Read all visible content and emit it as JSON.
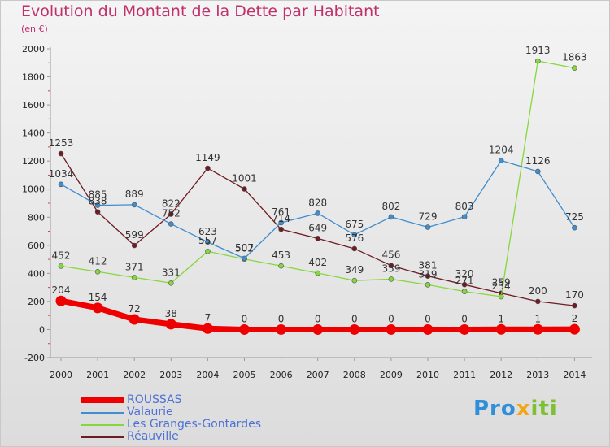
{
  "title": "Evolution du Montant de la Dette par Habitant",
  "subtitle": "(en €)",
  "logo": {
    "part1": "Pro",
    "part2": "x",
    "part3": "iti"
  },
  "chart_data": {
    "type": "line",
    "x": [
      "2000",
      "2001",
      "2002",
      "2003",
      "2004",
      "2005",
      "2006",
      "2007",
      "2008",
      "2009",
      "2010",
      "2011",
      "2012",
      "2013",
      "2014"
    ],
    "ylim": [
      -200,
      2000
    ],
    "yticks": [
      -200,
      0,
      200,
      400,
      600,
      800,
      1000,
      1200,
      1400,
      1600,
      1800,
      2000
    ],
    "grid": false,
    "legend_position": "bottom-left",
    "series": [
      {
        "name": "ROUSSAS",
        "color": "#ee0000",
        "values": [
          204,
          154,
          72,
          38,
          7,
          0,
          0,
          0,
          0,
          0,
          0,
          0,
          1,
          1,
          2
        ]
      },
      {
        "name": "Valaurie",
        "color": "#3f8ecf",
        "values": [
          1034,
          885,
          889,
          752,
          623,
          507,
          761,
          828,
          675,
          802,
          729,
          803,
          1204,
          1126,
          725
        ]
      },
      {
        "name": "Les Granges-Gontardes",
        "color": "#84d83c",
        "values": [
          452,
          412,
          371,
          331,
          557,
          502,
          453,
          402,
          349,
          359,
          319,
          271,
          234,
          1913,
          1863
        ]
      },
      {
        "name": "Réauville",
        "color": "#6e1b23",
        "values": [
          1253,
          838,
          599,
          822,
          1149,
          1001,
          714,
          649,
          576,
          456,
          381,
          320,
          259,
          200,
          170
        ]
      }
    ]
  }
}
